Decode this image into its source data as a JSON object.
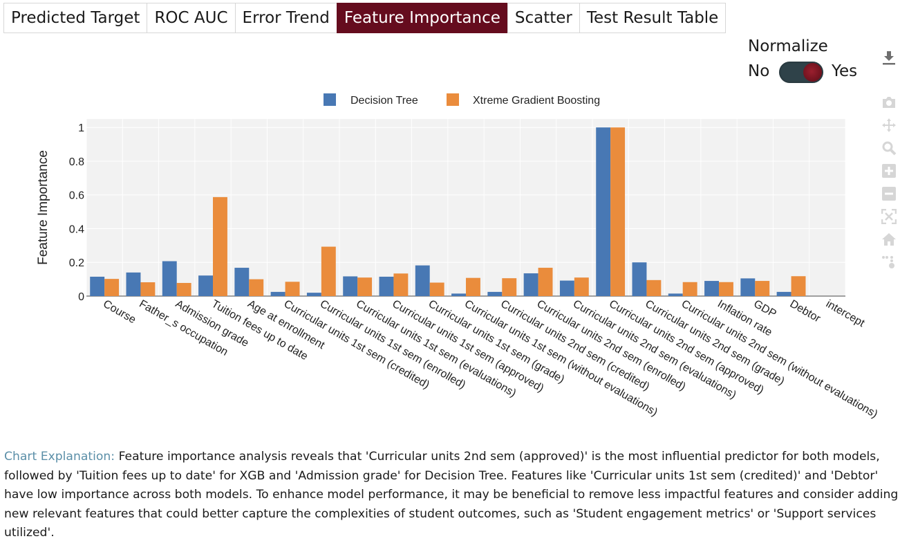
{
  "tabs": [
    {
      "label": "Predicted Target",
      "active": false
    },
    {
      "label": "ROC AUC",
      "active": false
    },
    {
      "label": "Error Trend",
      "active": false
    },
    {
      "label": "Feature Importance",
      "active": true
    },
    {
      "label": "Scatter",
      "active": false
    },
    {
      "label": "Test Result Table",
      "active": false
    }
  ],
  "normalize": {
    "title": "Normalize",
    "off_label": "No",
    "on_label": "Yes",
    "value": "Yes"
  },
  "modebar": {
    "icons": [
      "download-icon",
      "camera-icon",
      "pan-icon",
      "zoom-icon",
      "zoom-in-icon",
      "zoom-out-icon",
      "autoscale-icon",
      "reset-axes-icon",
      "spike-lines-icon"
    ]
  },
  "colors": {
    "accent": "#650c1e",
    "series1": "#4878b4",
    "series2": "#ea8c3c"
  },
  "chart_data": {
    "type": "bar",
    "title": "",
    "xlabel": "",
    "ylabel": "Feature Importance",
    "ylim": [
      0,
      1.05
    ],
    "yticks": [
      0,
      0.2,
      0.4,
      0.6,
      0.8,
      1
    ],
    "ytick_labels": [
      "0",
      "0.2",
      "0.4",
      "0.6",
      "0.8",
      "1"
    ],
    "legend": "top-center",
    "grid": true,
    "categories": [
      "Course",
      "Father_s occupation",
      "Admission grade",
      "Tuition fees up to date",
      "Age at enrollment",
      "Curricular units 1st sem (credited)",
      "Curricular units 1st sem (enrolled)",
      "Curricular units 1st sem (evaluations)",
      "Curricular units 1st sem (approved)",
      "Curricular units 1st sem (grade)",
      "Curricular units 1st sem (without evaluations)",
      "Curricular units 2nd sem (credited)",
      "Curricular units 2nd sem (enrolled)",
      "Curricular units 2nd sem (evaluations)",
      "Curricular units 2nd sem (approved)",
      "Curricular units 2nd sem (grade)",
      "Curricular units 2nd sem (without evaluations)",
      "Inflation rate",
      "GDP",
      "Debtor",
      "intercept"
    ],
    "series": [
      {
        "name": "Decision Tree",
        "values": [
          0.115,
          0.14,
          0.207,
          0.122,
          0.168,
          0.025,
          0.02,
          0.117,
          0.115,
          0.182,
          0.015,
          0.025,
          0.135,
          0.092,
          1.0,
          0.2,
          0.015,
          0.09,
          0.105,
          0.025,
          0
        ]
      },
      {
        "name": "Xtreme Gradient Boosting",
        "values": [
          0.102,
          0.082,
          0.078,
          0.587,
          0.1,
          0.085,
          0.293,
          0.11,
          0.134,
          0.08,
          0.108,
          0.106,
          0.168,
          0.11,
          1.0,
          0.095,
          0.083,
          0.083,
          0.09,
          0.118,
          0
        ]
      }
    ]
  },
  "explanation": {
    "label": "Chart Explanation:",
    "text": "Feature importance analysis reveals that 'Curricular units 2nd sem (approved)' is the most influential predictor for both models, followed by 'Tuition fees up to date' for XGB and 'Admission grade' for Decision Tree. Features like 'Curricular units 1st sem (credited)' and 'Debtor' have low importance across both models. To enhance model performance, it may be beneficial to remove less impactful features and consider adding new relevant features that could better capture the complexities of student outcomes, such as 'Student engagement metrics' or 'Support services utilized'."
  }
}
